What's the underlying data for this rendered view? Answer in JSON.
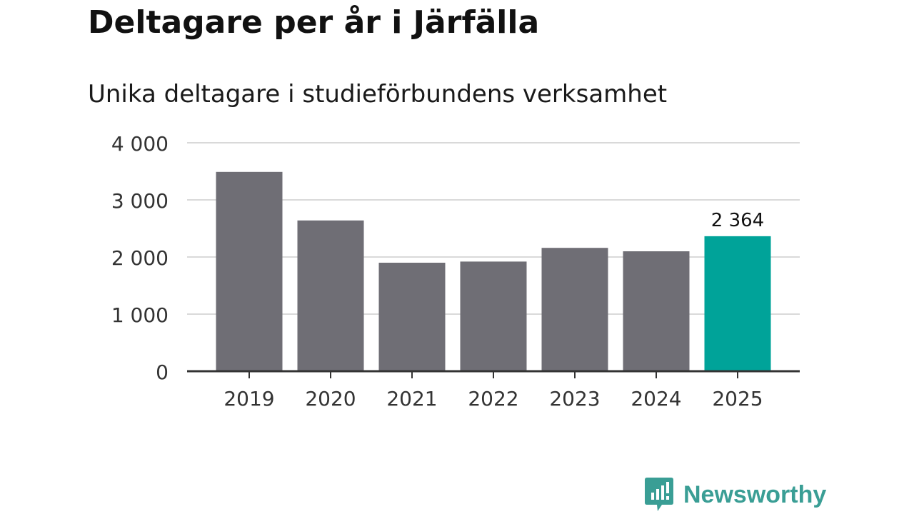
{
  "title": "Deltagare per år i Järfälla",
  "subtitle": "Unika deltagare i studieförbundens verksamhet",
  "chart_data": {
    "type": "bar",
    "title": "Deltagare per år i Järfälla",
    "subtitle": "Unika deltagare i studieförbundens verksamhet",
    "xlabel": "",
    "ylabel": "",
    "categories": [
      "2019",
      "2020",
      "2021",
      "2022",
      "2023",
      "2024",
      "2025"
    ],
    "values": [
      3490,
      2640,
      1900,
      1920,
      2160,
      2100,
      2364
    ],
    "ylim": [
      0,
      4000
    ],
    "yticks": [
      0,
      1000,
      2000,
      3000,
      4000
    ],
    "ytick_labels": [
      "0",
      "1 000",
      "2 000",
      "3 000",
      "4 000"
    ],
    "grid": true,
    "highlight_index": 6,
    "data_labels": [
      {
        "index": 6,
        "text": "2 364"
      }
    ],
    "colors": {
      "bar": "#6f6e75",
      "highlight": "#00a399",
      "grid": "#d9d9d9",
      "axis": "#333333",
      "tick_text": "#333333",
      "label_text": "#111111"
    }
  },
  "brand": {
    "name": "Newsworthy",
    "icon": "newsworthy-logo-icon",
    "color": "#3a9e95"
  }
}
